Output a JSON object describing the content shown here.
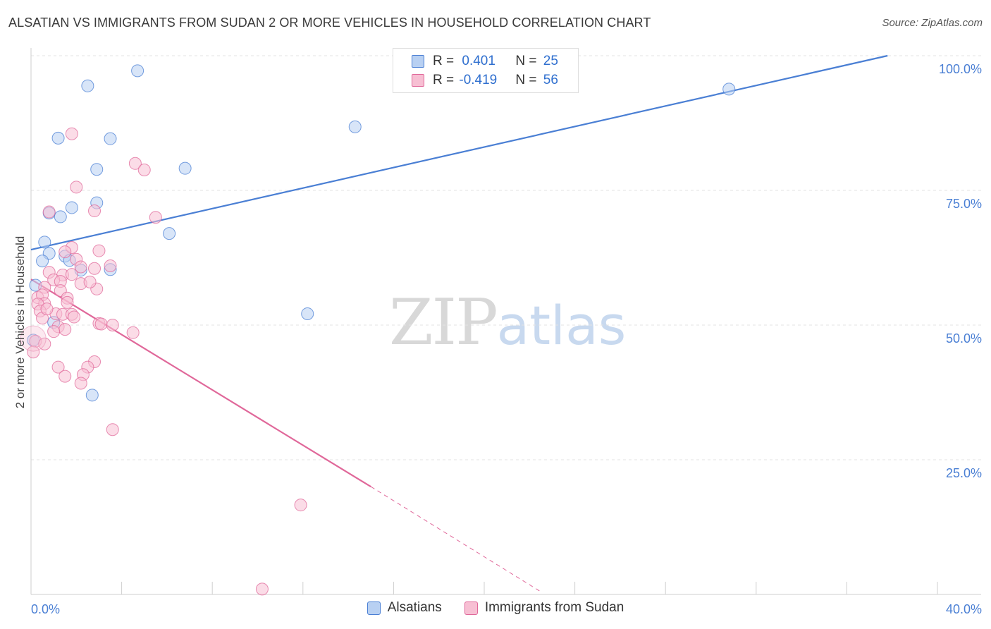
{
  "title": "ALSATIAN VS IMMIGRANTS FROM SUDAN 2 OR MORE VEHICLES IN HOUSEHOLD CORRELATION CHART",
  "source": "Source: ZipAtlas.com",
  "watermark": {
    "zip": "ZIP",
    "atlas": "atlas"
  },
  "colors": {
    "blue": "#4a7fd4",
    "blue_fill": "#b8d0f2",
    "pink": "#e0689a",
    "pink_fill": "#f7bfd3",
    "grid": "#e3e3e3"
  },
  "legend": {
    "rows": [
      {
        "r_label": "R = ",
        "r_value": "0.401",
        "n_label": "N = ",
        "n_value": "25"
      },
      {
        "r_label": "R = ",
        "r_value": "-0.419",
        "n_label": "N = ",
        "n_value": "56"
      }
    ]
  },
  "chart_data": {
    "type": "scatter",
    "title": "ALSATIAN VS IMMIGRANTS FROM SUDAN 2 OR MORE VEHICLES IN HOUSEHOLD CORRELATION CHART",
    "ylabel": "2 or more Vehicles in Household",
    "xlabel": "",
    "x_tick_labels": [
      "0.0%",
      "40.0%"
    ],
    "y_tick_labels": [
      "100.0%",
      "75.0%",
      "50.0%",
      "25.0%"
    ],
    "xlim": [
      0,
      40
    ],
    "ylim": [
      0,
      100
    ],
    "y_ticks": [
      100,
      75,
      50,
      25
    ],
    "grid": true,
    "legend_position": "top-center",
    "series": [
      {
        "name": "Alsatians",
        "r": 0.401,
        "n": 25,
        "color": "#4a7fd4",
        "trend": {
          "x0": 0,
          "y0": 64.0,
          "x1": 37.8,
          "y1": 100.0
        },
        "points": [
          [
            4.7,
            97.2
          ],
          [
            2.5,
            94.4
          ],
          [
            3.5,
            84.6
          ],
          [
            1.2,
            84.7
          ],
          [
            2.9,
            78.9
          ],
          [
            6.8,
            79.1
          ],
          [
            14.3,
            86.8
          ],
          [
            30.8,
            93.8
          ],
          [
            0.8,
            70.8
          ],
          [
            1.8,
            71.8
          ],
          [
            2.9,
            72.7
          ],
          [
            1.3,
            70.1
          ],
          [
            6.1,
            67.0
          ],
          [
            0.6,
            65.4
          ],
          [
            0.8,
            63.3
          ],
          [
            1.5,
            62.8
          ],
          [
            1.7,
            62.0
          ],
          [
            0.5,
            61.9
          ],
          [
            2.2,
            60.2
          ],
          [
            3.5,
            60.3
          ],
          [
            0.2,
            57.4
          ],
          [
            12.2,
            52.1
          ],
          [
            1.0,
            50.5
          ],
          [
            2.7,
            37.0
          ],
          [
            0.1,
            47.2
          ]
        ]
      },
      {
        "name": "Immigrants from Sudan",
        "r": -0.419,
        "n": 56,
        "color": "#e0689a",
        "trend": {
          "x0": 0,
          "y0": 58.5,
          "x1": 15.0,
          "y1": 20.0,
          "dash_to_x": 22.5,
          "dash_to_y": 0.5
        },
        "points": [
          [
            1.8,
            85.5
          ],
          [
            4.6,
            80.0
          ],
          [
            5.0,
            78.8
          ],
          [
            2.0,
            75.6
          ],
          [
            2.8,
            71.2
          ],
          [
            5.5,
            70.0
          ],
          [
            0.8,
            71.0
          ],
          [
            1.8,
            64.4
          ],
          [
            1.5,
            63.6
          ],
          [
            2.0,
            62.2
          ],
          [
            3.5,
            61.0
          ],
          [
            2.8,
            60.5
          ],
          [
            0.8,
            59.8
          ],
          [
            1.4,
            59.3
          ],
          [
            1.8,
            59.4
          ],
          [
            1.0,
            58.4
          ],
          [
            1.3,
            58.1
          ],
          [
            2.2,
            57.7
          ],
          [
            0.6,
            57.0
          ],
          [
            1.3,
            56.4
          ],
          [
            2.9,
            56.7
          ],
          [
            0.3,
            55.1
          ],
          [
            0.5,
            55.6
          ],
          [
            1.6,
            55.0
          ],
          [
            1.6,
            54.2
          ],
          [
            0.6,
            54.0
          ],
          [
            0.3,
            53.9
          ],
          [
            0.4,
            52.6
          ],
          [
            1.1,
            52.1
          ],
          [
            1.4,
            52.0
          ],
          [
            1.8,
            52.0
          ],
          [
            1.9,
            51.5
          ],
          [
            0.5,
            51.3
          ],
          [
            3.0,
            50.3
          ],
          [
            3.1,
            50.2
          ],
          [
            3.6,
            50.0
          ],
          [
            1.2,
            49.7
          ],
          [
            1.5,
            49.2
          ],
          [
            4.5,
            48.6
          ],
          [
            0.2,
            47.0
          ],
          [
            0.6,
            46.5
          ],
          [
            0.1,
            45.0
          ],
          [
            1.2,
            42.2
          ],
          [
            2.8,
            43.2
          ],
          [
            2.5,
            42.2
          ],
          [
            1.5,
            40.5
          ],
          [
            2.3,
            40.8
          ],
          [
            2.2,
            39.2
          ],
          [
            3.6,
            30.6
          ],
          [
            11.9,
            16.6
          ],
          [
            10.2,
            1.0
          ],
          [
            1.0,
            48.8
          ],
          [
            0.7,
            53.0
          ],
          [
            2.6,
            58.0
          ],
          [
            3.0,
            63.8
          ],
          [
            2.2,
            60.8
          ]
        ]
      }
    ]
  }
}
